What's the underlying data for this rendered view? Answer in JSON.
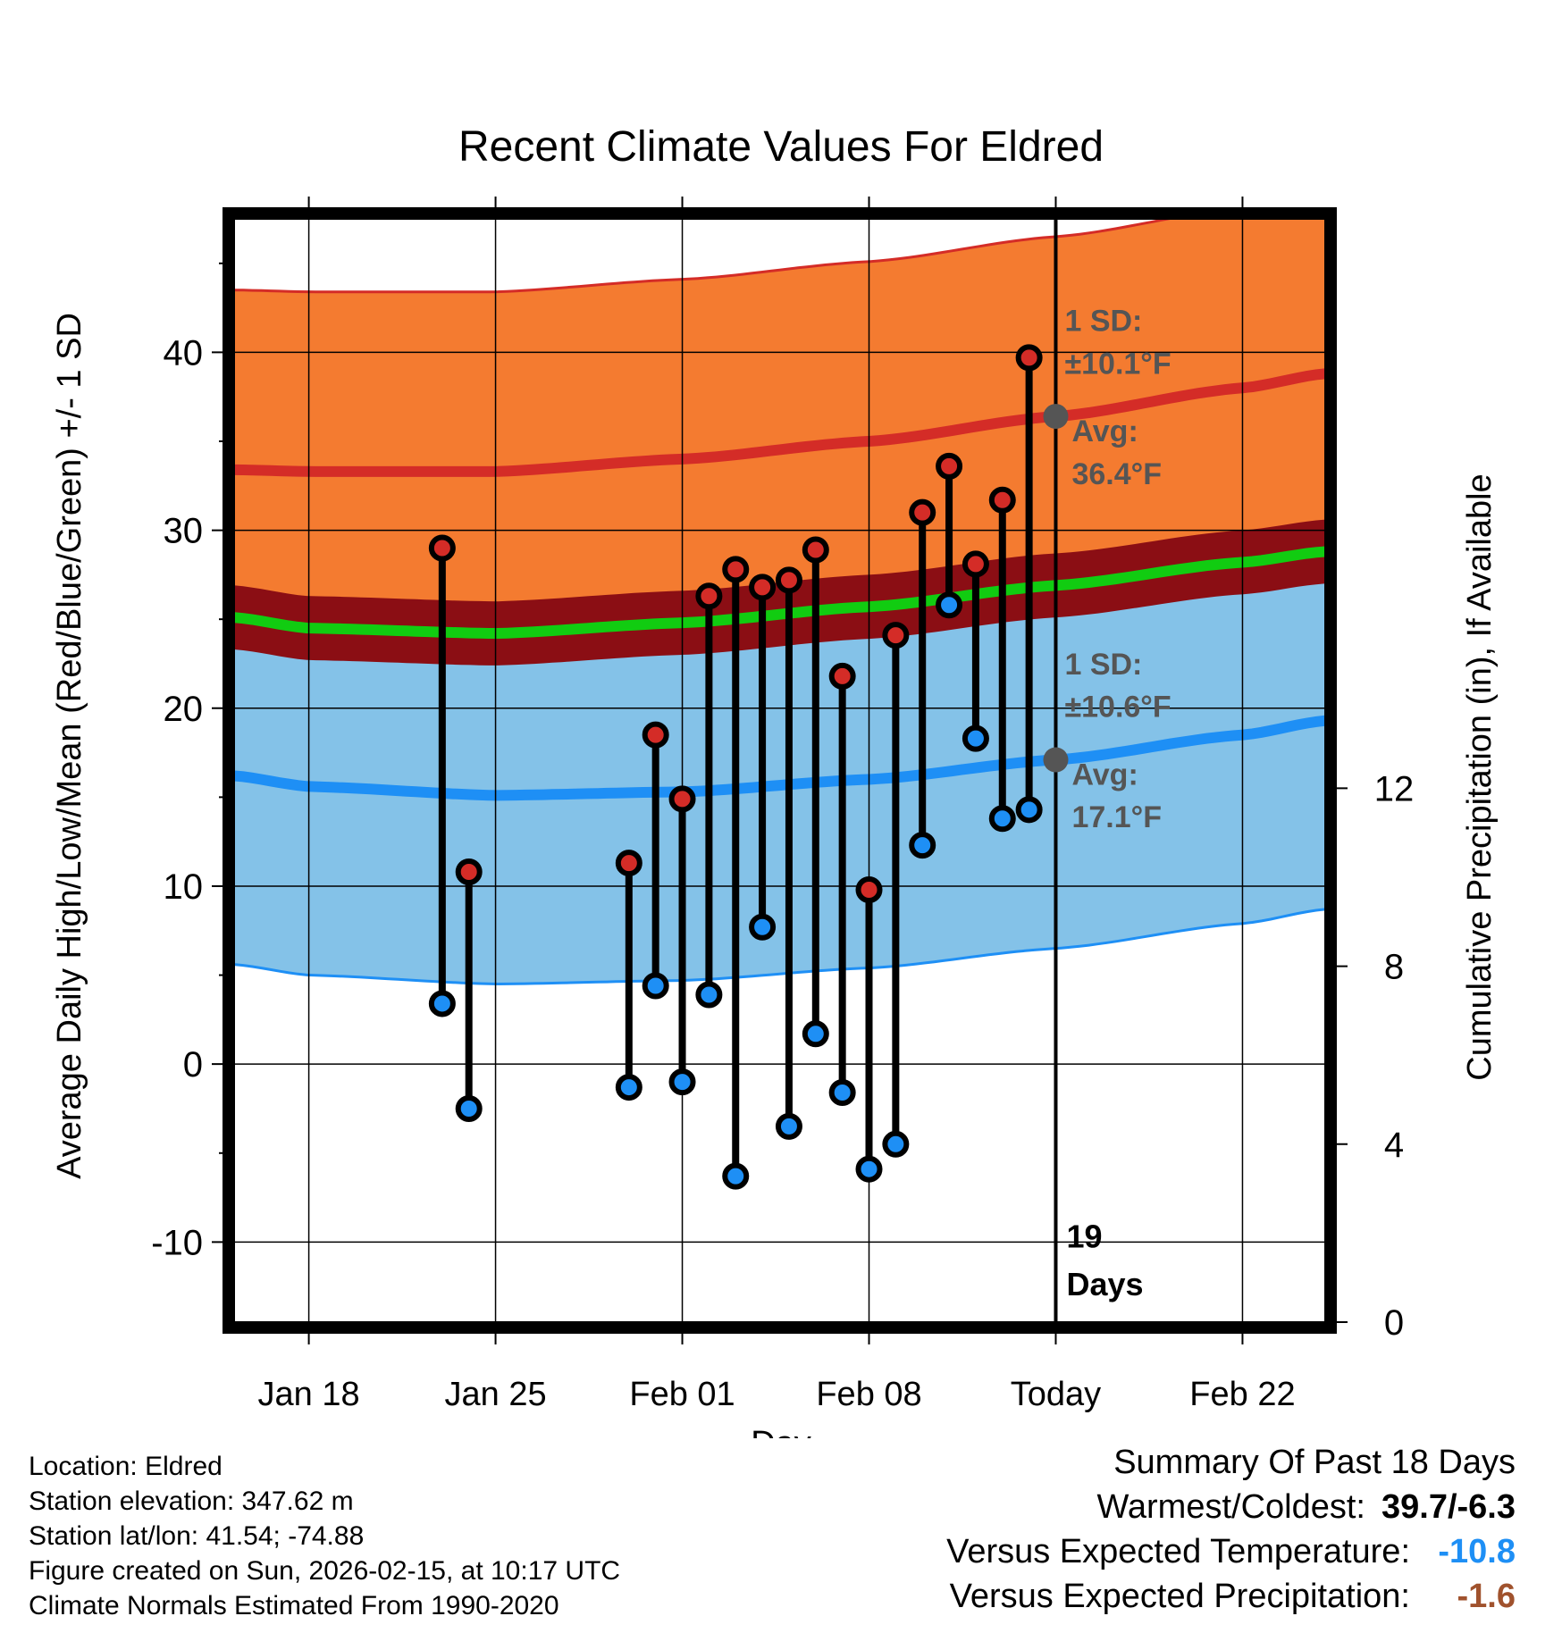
{
  "chart_data": {
    "type": "line",
    "title": "Recent Climate Values For Eldred",
    "xlabel": "Day",
    "ylabel": "Average Daily High/Low/Mean (Red/Blue/Green) +/- 1 SD",
    "y2label": "Cumulative Precipitation (in), If Available",
    "xlim": [
      -2.8,
      38.1
    ],
    "ylim": [
      -14.5,
      47.5
    ],
    "y2lim": [
      0,
      24.8
    ],
    "x_ticks": [
      {
        "x": 0,
        "label": "Jan 18"
      },
      {
        "x": 7,
        "label": "Jan 25"
      },
      {
        "x": 14,
        "label": "Feb 01"
      },
      {
        "x": 21,
        "label": "Feb 08"
      },
      {
        "x": 28,
        "label": "Today"
      },
      {
        "x": 35,
        "label": "Feb 22"
      }
    ],
    "y_ticks": [
      -10,
      0,
      10,
      20,
      30,
      40
    ],
    "y_tick_labels": [
      "-10",
      "0",
      "10",
      "20",
      "30",
      "40"
    ],
    "y2_ticks": [
      0,
      4,
      8,
      12
    ],
    "y2_tick_labels": [
      "0",
      "4",
      "8",
      "12"
    ],
    "today_x": 28,
    "today_label": {
      "count": "19",
      "unit": "Days"
    },
    "colors": {
      "high_band": "#f47b30",
      "high_line": "#d42c27",
      "mean_band": "#8b0e14",
      "mean_line": "#11cc11",
      "low_band": "#84c2e8",
      "low_line": "#1e8ff5",
      "high_dot": "#d42c27",
      "low_dot": "#1e8ff5",
      "avg_dot": "#555555",
      "annotation": "#555555"
    },
    "normals": {
      "x": [
        -2.8,
        0,
        7,
        14,
        21,
        28,
        35,
        38.1
      ],
      "high_avg": [
        33.4,
        33.3,
        33.3,
        34.0,
        35.0,
        36.4,
        38.0,
        38.8
      ],
      "high_sd": 10.1,
      "low_avg": [
        16.2,
        15.6,
        15.1,
        15.3,
        16.0,
        17.1,
        18.5,
        19.3
      ],
      "low_sd": 10.6,
      "mean_avg": [
        25.1,
        24.5,
        24.2,
        24.8,
        25.7,
        26.9,
        28.2,
        28.8
      ],
      "mean_sd": 1.8
    },
    "series": [
      {
        "name": "High",
        "values": [
          29.0,
          10.8,
          11.3,
          18.5,
          14.9,
          26.3,
          27.8,
          26.8,
          27.2,
          28.9,
          21.8,
          9.8,
          24.1,
          31.0,
          33.6,
          28.1,
          31.7,
          39.7
        ]
      },
      {
        "name": "Low",
        "values": [
          3.4,
          -2.5,
          -1.3,
          4.4,
          -1.0,
          3.9,
          -6.3,
          7.7,
          -3.5,
          1.7,
          -1.6,
          -5.9,
          -4.5,
          12.3,
          25.8,
          18.3,
          13.8,
          14.3
        ]
      }
    ],
    "days_x": [
      5,
      6,
      12,
      13,
      14,
      15,
      16,
      17,
      18,
      19,
      20,
      21,
      22,
      23,
      24,
      25,
      26,
      27
    ],
    "annotations": {
      "high": {
        "sd_label": "1 SD:",
        "sd_value": "±10.1°F",
        "avg_label": "Avg:",
        "avg_value": "36.4°F",
        "avg": 36.4
      },
      "low": {
        "sd_label": "1 SD:",
        "sd_value": "±10.6°F",
        "avg_label": "Avg:",
        "avg_value": "17.1°F",
        "avg": 17.1
      }
    }
  },
  "footer": {
    "location": "Location: Eldred",
    "elevation": "Station elevation: 347.62 m",
    "latlon": "Station lat/lon: 41.54; -74.88",
    "created": "Figure created on Sun, 2026-02-15, at 10:17 UTC",
    "normals": "Climate Normals Estimated From 1990-2020"
  },
  "summary": {
    "title": "Summary Of Past 18 Days",
    "warm_cold_label": "Warmest/Coldest:",
    "warm_cold_value": "39.7/-6.3",
    "temp_label": "Versus Expected Temperature:",
    "temp_value": "-10.8",
    "temp_color": "#1e8ff5",
    "precip_label": "Versus Expected Precipitation:",
    "precip_value": "-1.6",
    "precip_color": "#a0522d"
  }
}
